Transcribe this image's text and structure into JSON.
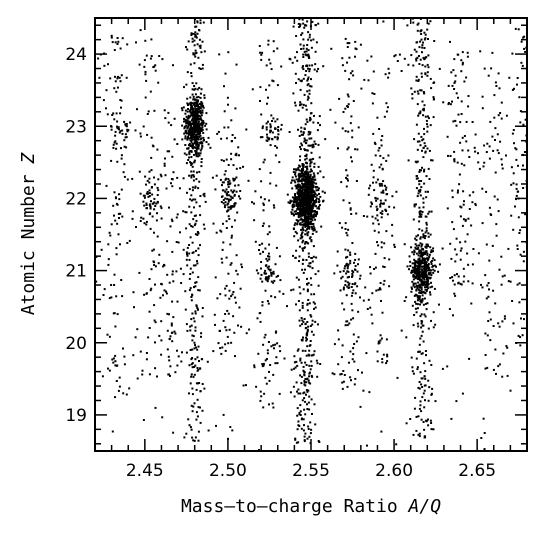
{
  "chart_data": {
    "type": "scatter",
    "xlabel_text": "Mass–to–charge Ratio ",
    "xlabel_var": "A/Q",
    "ylabel_text": "Atomic Number ",
    "ylabel_var": "Z",
    "xlim": [
      2.42,
      2.68
    ],
    "ylim": [
      18.5,
      24.5
    ],
    "x_ticks": [
      2.45,
      2.5,
      2.55,
      2.6,
      2.65
    ],
    "x_tick_labels": [
      "2.45",
      "2.50",
      "2.55",
      "2.60",
      "2.65"
    ],
    "y_ticks": [
      19,
      20,
      21,
      22,
      23,
      24
    ],
    "y_tick_labels": [
      "19",
      "20",
      "21",
      "22",
      "23",
      "24"
    ],
    "grid": false,
    "marker_color": "#000000",
    "clusters": [
      {
        "x": 2.48,
        "y": 23.0,
        "sx": 0.003,
        "sy": 0.22,
        "n": 420
      },
      {
        "x": 2.547,
        "y": 22.0,
        "sx": 0.0035,
        "sy": 0.22,
        "n": 800
      },
      {
        "x": 2.617,
        "y": 21.0,
        "sx": 0.0033,
        "sy": 0.2,
        "n": 380
      },
      {
        "x": 2.501,
        "y": 22.0,
        "sx": 0.0025,
        "sy": 0.16,
        "n": 70
      },
      {
        "x": 2.573,
        "y": 21.0,
        "sx": 0.003,
        "sy": 0.16,
        "n": 45
      },
      {
        "x": 2.524,
        "y": 21.0,
        "sx": 0.003,
        "sy": 0.15,
        "n": 45
      },
      {
        "x": 2.591,
        "y": 22.0,
        "sx": 0.003,
        "sy": 0.15,
        "n": 40
      },
      {
        "x": 2.453,
        "y": 22.0,
        "sx": 0.003,
        "sy": 0.18,
        "n": 45
      },
      {
        "x": 2.527,
        "y": 22.9,
        "sx": 0.003,
        "sy": 0.15,
        "n": 35
      },
      {
        "x": 2.437,
        "y": 22.9,
        "sx": 0.003,
        "sy": 0.15,
        "n": 30
      }
    ],
    "streaks": [
      {
        "x": 2.48,
        "sx": 0.003,
        "y0": 18.6,
        "y1": 24.5,
        "n": 300
      },
      {
        "x": 2.547,
        "sx": 0.0035,
        "y0": 18.6,
        "y1": 24.5,
        "n": 480
      },
      {
        "x": 2.617,
        "sx": 0.0033,
        "y0": 18.6,
        "y1": 24.5,
        "n": 320
      },
      {
        "x": 2.433,
        "sx": 0.0035,
        "y0": 19.2,
        "y1": 24.3,
        "n": 110
      },
      {
        "x": 2.453,
        "sx": 0.0035,
        "y0": 19.5,
        "y1": 24.0,
        "n": 80
      },
      {
        "x": 2.465,
        "sx": 0.0035,
        "y0": 19.5,
        "y1": 23.3,
        "n": 70
      },
      {
        "x": 2.5,
        "sx": 0.004,
        "y0": 19.8,
        "y1": 23.6,
        "n": 100
      },
      {
        "x": 2.524,
        "sx": 0.004,
        "y0": 19.0,
        "y1": 24.2,
        "n": 110
      },
      {
        "x": 2.573,
        "sx": 0.004,
        "y0": 19.3,
        "y1": 24.2,
        "n": 120
      },
      {
        "x": 2.591,
        "sx": 0.004,
        "y0": 19.7,
        "y1": 24.0,
        "n": 90
      },
      {
        "x": 2.64,
        "sx": 0.0045,
        "y0": 20.6,
        "y1": 24.2,
        "n": 110
      },
      {
        "x": 2.66,
        "sx": 0.0045,
        "y0": 19.5,
        "y1": 23.8,
        "n": 80
      },
      {
        "x": 2.674,
        "sx": 0.0035,
        "y0": 19.8,
        "y1": 24.4,
        "n": 70
      }
    ],
    "background_points": 260
  }
}
